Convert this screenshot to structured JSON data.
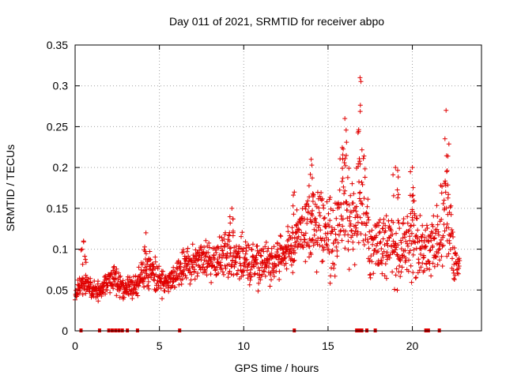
{
  "chart_data": {
    "type": "scatter",
    "title": "Day 011 of 2021, SRMTID for receiver abpo",
    "xlabel": "GPS time / hours",
    "ylabel": "SRMTID / TECUs",
    "xlim": [
      0,
      24.1
    ],
    "ylim": [
      0,
      0.35
    ],
    "xticks": [
      0,
      5,
      10,
      15,
      20
    ],
    "xtick_labels": [
      "0",
      "5",
      "10",
      "15",
      "20"
    ],
    "yticks": [
      0,
      0.05,
      0.1,
      0.15,
      0.2,
      0.25,
      0.3,
      0.35
    ],
    "ytick_labels": [
      "0",
      "0.05",
      "0.1",
      "0.15",
      "0.2",
      "0.25",
      "0.3",
      "0.35"
    ],
    "grid": true,
    "marker": "+",
    "color": "#e00000",
    "series": [
      {
        "name": "SRMTID",
        "envelope_x": [
          0,
          0.5,
          1,
          1.5,
          2,
          2.5,
          3,
          3.5,
          4,
          4.5,
          5,
          5.5,
          6,
          6.5,
          7,
          7.5,
          8,
          8.5,
          9,
          9.5,
          10,
          10.5,
          11,
          11.5,
          12,
          12.5,
          13,
          13.5,
          14,
          14.5,
          15,
          15.5,
          16,
          16.5,
          17,
          17.5,
          18,
          18.5,
          19,
          19.5,
          20,
          20.5,
          21,
          21.5,
          22,
          22.5,
          22.8
        ],
        "envelope_low": [
          0.03,
          0.035,
          0.03,
          0.035,
          0.04,
          0.035,
          0.03,
          0.035,
          0.04,
          0.04,
          0.035,
          0.04,
          0.045,
          0.05,
          0.05,
          0.055,
          0.055,
          0.05,
          0.05,
          0.05,
          0.045,
          0.045,
          0.045,
          0.045,
          0.05,
          0.055,
          0.06,
          0.07,
          0.06,
          0.06,
          0.05,
          0.05,
          0.05,
          0.05,
          0.04,
          0.04,
          0.045,
          0.04,
          0.035,
          0.035,
          0.04,
          0.04,
          0.045,
          0.045,
          0.045,
          0.045,
          0.05
        ],
        "envelope_high": [
          0.06,
          0.085,
          0.07,
          0.065,
          0.085,
          0.09,
          0.07,
          0.075,
          0.1,
          0.11,
          0.085,
          0.085,
          0.09,
          0.11,
          0.115,
          0.12,
          0.12,
          0.125,
          0.14,
          0.13,
          0.125,
          0.125,
          0.12,
          0.125,
          0.13,
          0.14,
          0.15,
          0.185,
          0.18,
          0.2,
          0.175,
          0.2,
          0.25,
          0.2,
          0.3,
          0.17,
          0.16,
          0.175,
          0.165,
          0.18,
          0.19,
          0.15,
          0.16,
          0.17,
          0.25,
          0.12,
          0.1
        ],
        "spikes": [
          [
            0.5,
            0.11
          ],
          [
            4.2,
            0.12
          ],
          [
            9.3,
            0.15
          ],
          [
            13.0,
            0.17
          ],
          [
            14.0,
            0.21
          ],
          [
            16.0,
            0.26
          ],
          [
            16.9,
            0.31
          ],
          [
            19.0,
            0.2
          ],
          [
            20.0,
            0.2
          ],
          [
            22.0,
            0.27
          ]
        ]
      }
    ],
    "zero_markers_x": [
      0.35,
      1.45,
      2.0,
      2.2,
      2.4,
      2.6,
      2.8,
      3.1,
      3.7,
      6.2,
      13.0,
      16.7,
      16.85,
      17.0,
      17.3,
      17.8,
      20.8,
      20.95,
      21.6
    ]
  }
}
